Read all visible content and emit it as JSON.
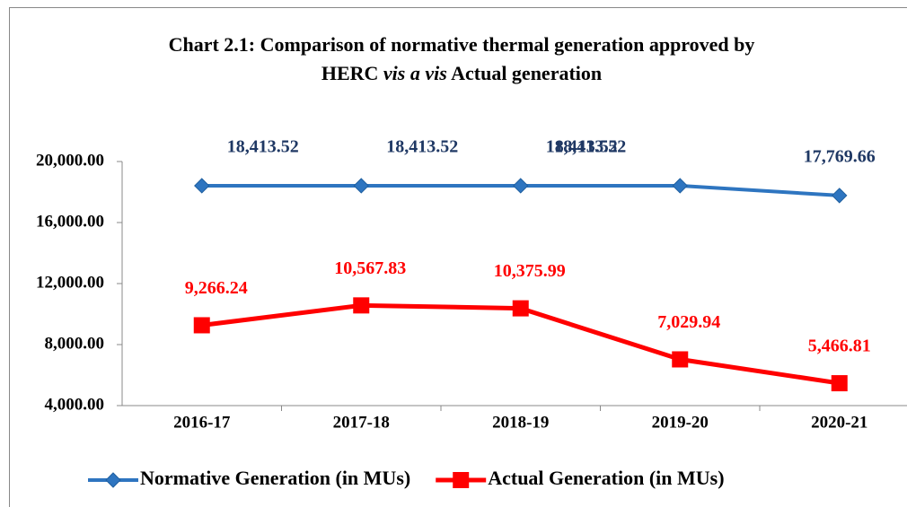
{
  "chart_data": {
    "type": "line",
    "title": [
      "Chart 2.1: Comparison of normative thermal generation approved by",
      "HERC",
      "vis a vis",
      "Actual generation"
    ],
    "categories": [
      "2016-17",
      "2017-18",
      "2018-19",
      "2019-20",
      "2020-21"
    ],
    "series": [
      {
        "name": "Normative Generation (in MUs)",
        "color": "#2e75c0",
        "label_color": "#1f3864",
        "marker": "diamond",
        "values": [
          18413.52,
          18413.52,
          18413.52,
          18413.52,
          17769.66
        ],
        "value_labels": [
          "18,413.52",
          "18,413.52",
          "18,413.52",
          "18,413.52",
          "17,769.66"
        ]
      },
      {
        "name": "Actual Generation  (in MUs)",
        "color": "#ff0000",
        "label_color": "#ff0000",
        "marker": "square",
        "values": [
          9266.24,
          10567.83,
          10375.99,
          7029.94,
          5466.81
        ],
        "value_labels": [
          "9,266.24",
          "10,567.83",
          "10,375.99",
          "7,029.94",
          "5,466.81"
        ]
      }
    ],
    "ylim": [
      4000,
      20000
    ],
    "yticks": [
      {
        "value": 4000,
        "label": "4,000.00"
      },
      {
        "value": 8000,
        "label": "8,000.00"
      },
      {
        "value": 12000,
        "label": "12,000.00"
      },
      {
        "value": 16000,
        "label": "16,000.00"
      },
      {
        "value": 20000,
        "label": "20,000.00"
      }
    ],
    "legend": "bottom",
    "grid": false
  }
}
